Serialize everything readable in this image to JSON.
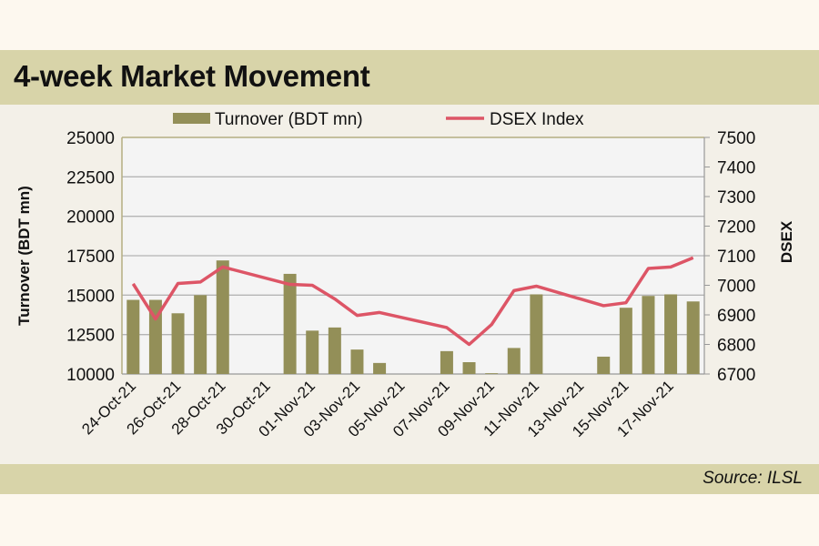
{
  "title": "4-week Market Movement",
  "source": "Source: ILSL",
  "colors": {
    "bar": "#938f58",
    "line": "#dd5566",
    "band": "#d8d4a9",
    "plot_bg": "#f4f4f4"
  },
  "chart_data": {
    "type": "bar+line",
    "title": "4-week Market Movement",
    "dates": [
      "24-Oct-21",
      "25-Oct-21",
      "26-Oct-21",
      "27-Oct-21",
      "28-Oct-21",
      "31-Oct-21",
      "01-Nov-21",
      "02-Nov-21",
      "03-Nov-21",
      "04-Nov-21",
      "07-Nov-21",
      "08-Nov-21",
      "09-Nov-21",
      "10-Nov-21",
      "11-Nov-21",
      "14-Nov-21",
      "15-Nov-21",
      "16-Nov-21",
      "17-Nov-21",
      "18-Nov-21"
    ],
    "day_index": [
      0,
      1,
      2,
      3,
      4,
      7,
      8,
      9,
      10,
      11,
      14,
      15,
      16,
      17,
      18,
      21,
      22,
      23,
      24,
      25
    ],
    "x_tick_labels": [
      "24-Oct-21",
      "26-Oct-21",
      "28-Oct-21",
      "30-Oct-21",
      "01-Nov-21",
      "03-Nov-21",
      "05-Nov-21",
      "07-Nov-21",
      "09-Nov-21",
      "11-Nov-21",
      "13-Nov-21",
      "15-Nov-21",
      "17-Nov-21"
    ],
    "x_days": 26,
    "series": [
      {
        "name": "Turnover (BDT mn)",
        "type": "bar",
        "axis": "left",
        "values": [
          14700,
          14700,
          13850,
          15000,
          17200,
          16350,
          12750,
          12950,
          11550,
          10700,
          11450,
          10750,
          10050,
          11650,
          15050,
          11100,
          14200,
          14950,
          15050,
          14600
        ]
      },
      {
        "name": "DSEX Index",
        "type": "line",
        "axis": "right",
        "values": [
          7005,
          6886,
          7006,
          7011,
          7062,
          7003,
          7000,
          6954,
          6898,
          6908,
          6857,
          6800,
          6867,
          6982,
          6997,
          6931,
          6941,
          7057,
          7062,
          7093
        ]
      }
    ],
    "ylabel_left": "Turnover (BDT mn)",
    "ylabel_right": "DSEX",
    "ylim_left": [
      10000,
      25000
    ],
    "yticks_left": [
      "10000",
      "12500",
      "15000",
      "17500",
      "20000",
      "22500",
      "25000"
    ],
    "ylim_right": [
      6700,
      7500
    ],
    "yticks_right": [
      "6700",
      "6800",
      "6900",
      "7000",
      "7100",
      "7200",
      "7300",
      "7400",
      "7500"
    ],
    "legend": "top",
    "grid": true
  }
}
